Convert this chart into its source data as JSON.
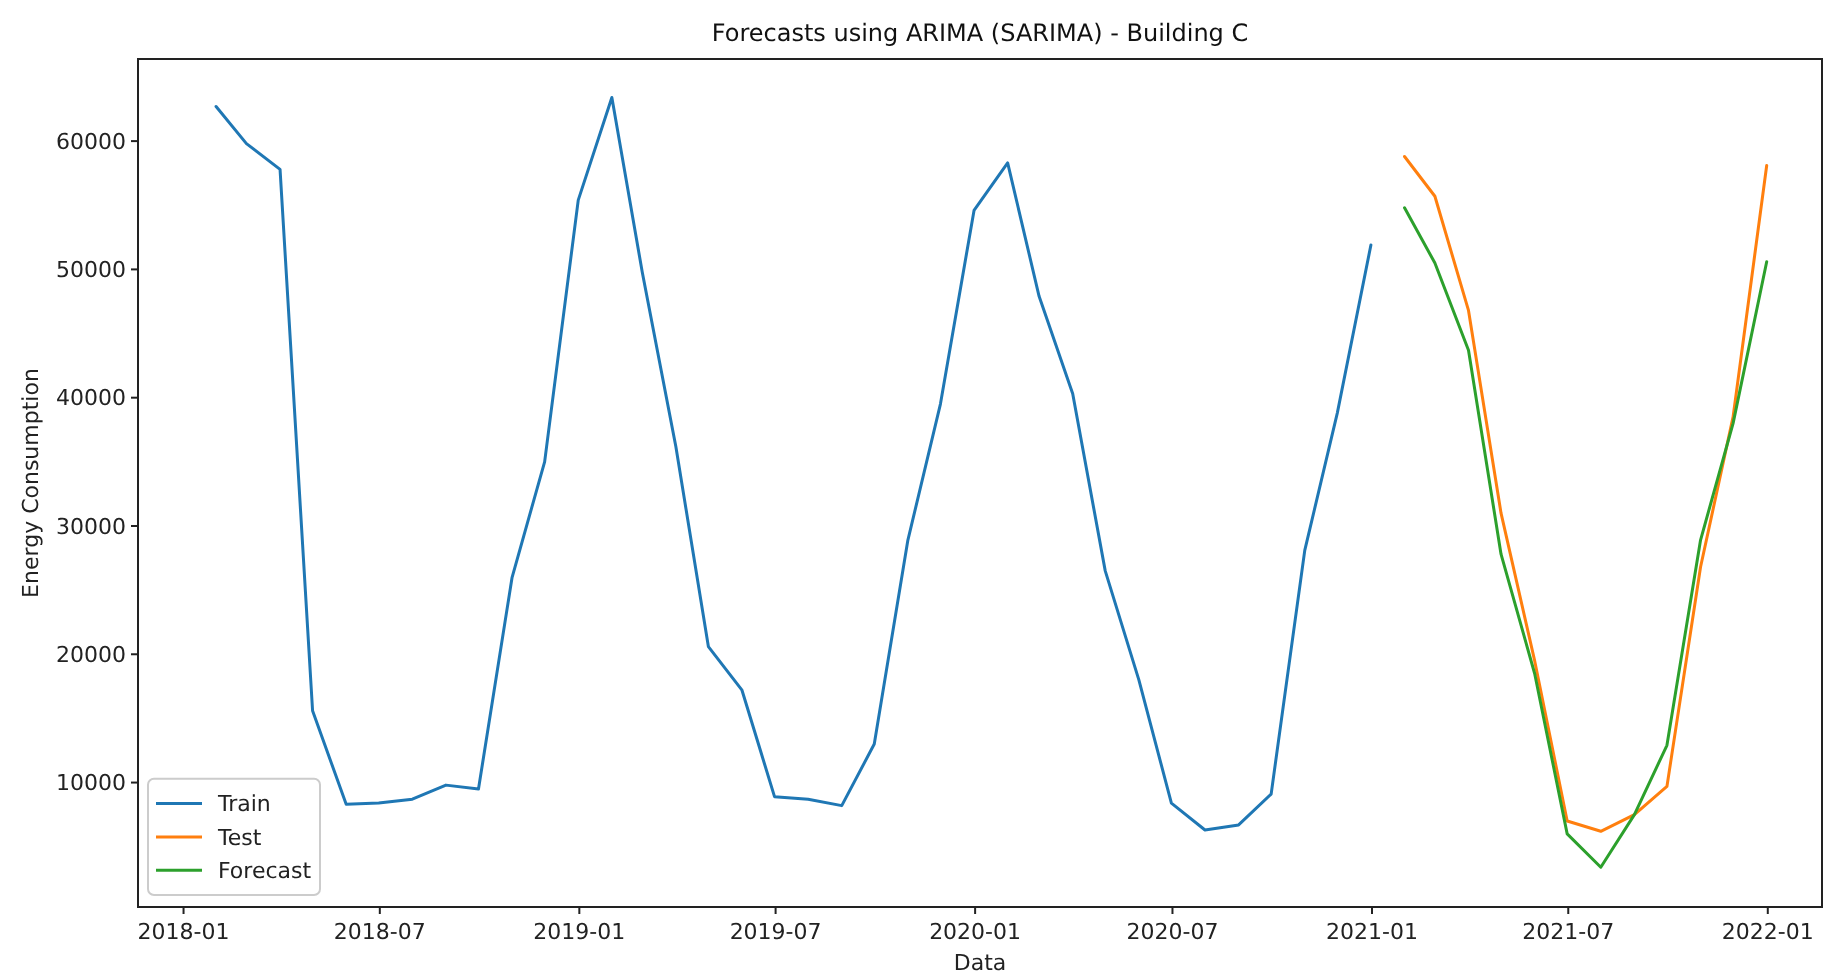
{
  "chart_data": {
    "type": "line",
    "title": "Forecasts using ARIMA (SARIMA) - Building C",
    "xlabel": "Data",
    "ylabel": "Energy Consumption",
    "xlim": [
      "2017-11-20",
      "2022-02-20"
    ],
    "xticks": [
      "2018-01",
      "2018-07",
      "2019-01",
      "2019-07",
      "2020-01",
      "2020-07",
      "2021-01",
      "2021-07",
      "2022-01"
    ],
    "ylim": [
      300,
      66400
    ],
    "yticks": [
      10000,
      20000,
      30000,
      40000,
      50000,
      60000
    ],
    "legend": "bottom left",
    "series": [
      {
        "name": "Train",
        "color": "#1f77b4",
        "x": [
          "2018-01-31",
          "2018-02-28",
          "2018-03-31",
          "2018-04-30",
          "2018-05-31",
          "2018-06-30",
          "2018-07-31",
          "2018-08-31",
          "2018-09-30",
          "2018-10-31",
          "2018-11-30",
          "2018-12-31",
          "2019-01-31",
          "2019-02-28",
          "2019-03-31",
          "2019-04-30",
          "2019-05-31",
          "2019-06-30",
          "2019-07-31",
          "2019-08-31",
          "2019-09-30",
          "2019-10-31",
          "2019-11-30",
          "2019-12-31",
          "2020-01-31",
          "2020-02-29",
          "2020-03-31",
          "2020-04-30",
          "2020-05-31",
          "2020-06-30",
          "2020-07-31",
          "2020-08-31",
          "2020-09-30",
          "2020-10-31",
          "2020-11-30",
          "2020-12-31"
        ],
        "values": [
          62700,
          59800,
          57800,
          15600,
          8300,
          8400,
          8700,
          9800,
          9500,
          26000,
          35000,
          55400,
          63400,
          49800,
          36200,
          20600,
          17200,
          8900,
          8700,
          8200,
          13000,
          28900,
          39500,
          54600,
          58300,
          47900,
          40300,
          26500,
          18000,
          8400,
          6300,
          6700,
          9100,
          28100,
          38800,
          51900
        ]
      },
      {
        "name": "Test",
        "color": "#ff7f0e",
        "x": [
          "2021-01-31",
          "2021-02-28",
          "2021-03-31",
          "2021-04-30",
          "2021-05-31",
          "2021-06-30",
          "2021-07-31",
          "2021-08-31",
          "2021-09-30",
          "2021-10-31",
          "2021-11-30",
          "2021-12-31"
        ],
        "values": [
          58800,
          55700,
          46800,
          31000,
          19500,
          7000,
          6200,
          7500,
          9700,
          26800,
          38500,
          58100
        ]
      },
      {
        "name": "Forecast",
        "color": "#2ca02c",
        "x": [
          "2021-01-31",
          "2021-02-28",
          "2021-03-31",
          "2021-04-30",
          "2021-05-31",
          "2021-06-30",
          "2021-07-31",
          "2021-08-31",
          "2021-09-30",
          "2021-10-31",
          "2021-11-30",
          "2021-12-31"
        ],
        "values": [
          54800,
          50500,
          43700,
          27800,
          18500,
          6000,
          3400,
          7500,
          12900,
          28900,
          38000,
          50600
        ]
      }
    ]
  }
}
